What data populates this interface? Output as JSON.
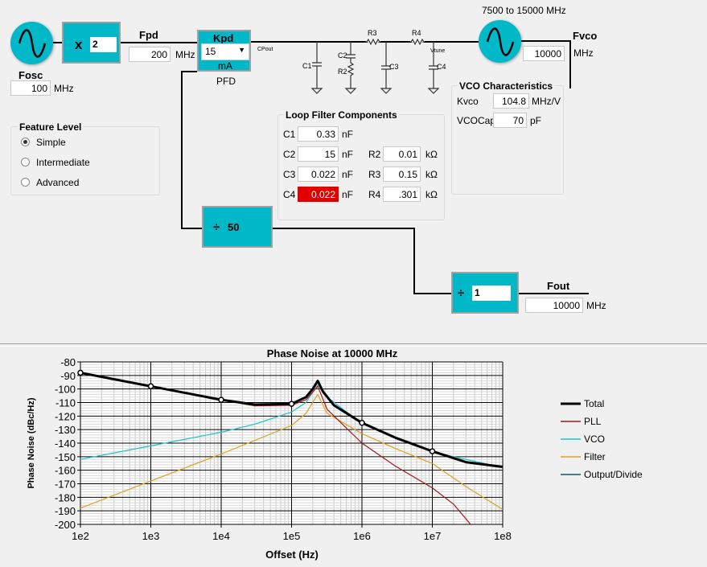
{
  "osc": {
    "label": "Fosc",
    "value": "100",
    "unit": "MHz"
  },
  "mult": {
    "prefix": "x",
    "value": "2"
  },
  "fpd": {
    "label": "Fpd",
    "value": "200",
    "unit": "MHz"
  },
  "pfd": {
    "title": "Kpd",
    "value": "15",
    "unit": "mA",
    "caption": "PFD"
  },
  "filter_labels": {
    "cpout": "CPout",
    "vtune": "Vtune",
    "c1": "C1",
    "c2": "C2",
    "r2": "R2",
    "r3": "R3",
    "c3": "C3",
    "r4": "R4",
    "c4": "C4"
  },
  "vco": {
    "range": "7500 to 15000 MHz",
    "label": "Fvco",
    "value": "10000",
    "unit": "MHz"
  },
  "vco_char": {
    "title": "VCO Characteristics",
    "kvco_label": "Kvco",
    "kvco": "104.8",
    "kvco_unit": "MHz/V",
    "cap_label": "VCOCap",
    "cap": "70",
    "cap_unit": "pF"
  },
  "feature": {
    "title": "Feature Level",
    "options": [
      "Simple",
      "Intermediate",
      "Advanced"
    ],
    "selected": "Simple"
  },
  "loop": {
    "title": "Loop Filter Components",
    "c": [
      {
        "l": "C1",
        "v": "0.33",
        "u": "nF"
      },
      {
        "l": "C2",
        "v": "15",
        "u": "nF"
      },
      {
        "l": "C3",
        "v": "0.022",
        "u": "nF"
      },
      {
        "l": "C4",
        "v": "0.022",
        "u": "nF"
      }
    ],
    "r": [
      {
        "l": "R2",
        "v": "0.01",
        "u": "kΩ"
      },
      {
        "l": "R3",
        "v": "0.15",
        "u": "kΩ"
      },
      {
        "l": "R4",
        "v": ".301",
        "u": "kΩ"
      }
    ],
    "error_color": "#e00000"
  },
  "ndiv": {
    "prefix": "÷",
    "value": "50"
  },
  "outdiv": {
    "prefix": "÷",
    "value": "1"
  },
  "fout": {
    "label": "Fout",
    "value": "10000",
    "unit": "MHz"
  },
  "chart_data": {
    "type": "line",
    "title": "Phase Noise at 10000 MHz",
    "xlabel": "Offset (Hz)",
    "ylabel": "Phase Noise (dBc/Hz)",
    "xscale": "log",
    "xlim": [
      100,
      100000000
    ],
    "ylim": [
      -200,
      -80
    ],
    "xticks": [
      "1e2",
      "1e3",
      "1e4",
      "1e5",
      "1e6",
      "1e7",
      "1e8"
    ],
    "yticks": [
      "-80",
      "-90",
      "-100",
      "-110",
      "-120",
      "-130",
      "-140",
      "-150",
      "-160",
      "-170",
      "-180",
      "-190",
      "-200"
    ],
    "grid": true,
    "legend": "right",
    "series": [
      {
        "name": "Total",
        "color": "#000000",
        "x": [
          100.0,
          1000.0,
          10000.0,
          30000.0,
          100000.0,
          160000.0,
          200000.0,
          235000.0,
          280000.0,
          400000.0,
          1000000.0,
          3000000.0,
          10000000.0,
          30000000.0,
          100000000.0
        ],
        "y": [
          -88,
          -98,
          -108,
          -111.5,
          -111,
          -106,
          -100,
          -94,
          -102,
          -112,
          -125,
          -136,
          -146,
          -154,
          -157.5
        ]
      },
      {
        "name": "PLL",
        "color": "#a01818",
        "x": [
          100.0,
          1000.0,
          10000.0,
          30000.0,
          100000.0,
          160000.0,
          235000.0,
          320000.0,
          1000000.0,
          3000000.0,
          10000000.0,
          20000000.0,
          35000000.0
        ],
        "y": [
          -88,
          -98,
          -108,
          -112.5,
          -112,
          -108,
          -98,
          -115,
          -140,
          -157,
          -173,
          -185,
          -200
        ]
      },
      {
        "name": "VCO",
        "color": "#20c0d0",
        "x": [
          100.0,
          1000.0,
          10000.0,
          30000.0,
          100000.0,
          160000.0,
          235000.0,
          320000.0,
          1000000.0,
          10000000.0,
          100000000.0
        ],
        "y": [
          -152,
          -142,
          -132,
          -126,
          -117,
          -110,
          -97,
          -106,
          -125.5,
          -146.5,
          -158
        ]
      },
      {
        "name": "Filter",
        "color": "#e0a020",
        "x": [
          100.0,
          1000.0,
          10000.0,
          100000.0,
          160000.0,
          235000.0,
          320000.0,
          1000000.0,
          3000000.0,
          10000000.0,
          30000000.0,
          100000000.0
        ],
        "y": [
          -188,
          -168,
          -148,
          -127,
          -118,
          -104,
          -118,
          -133,
          -144,
          -155,
          -172,
          -189
        ]
      },
      {
        "name": "Output/Divide",
        "color": "#0a5a6a",
        "x": [
          100.0,
          1000.0,
          10000.0,
          30000.0,
          100000.0,
          160000.0,
          200000.0,
          235000.0,
          280000.0,
          400000.0,
          1000000.0,
          3000000.0,
          10000000.0,
          30000000.0,
          100000000.0
        ],
        "y": [
          -88,
          -98,
          -108,
          -111.5,
          -111,
          -106,
          -100,
          -94,
          -102,
          -112,
          -125,
          -136,
          -146,
          -154,
          -157.5
        ]
      }
    ],
    "markers": {
      "x": [
        100.0,
        1000.0,
        10000.0,
        100000.0,
        1000000.0,
        10000000.0
      ],
      "y": [
        -88,
        -98,
        -108,
        -111,
        -125,
        -146
      ]
    }
  }
}
